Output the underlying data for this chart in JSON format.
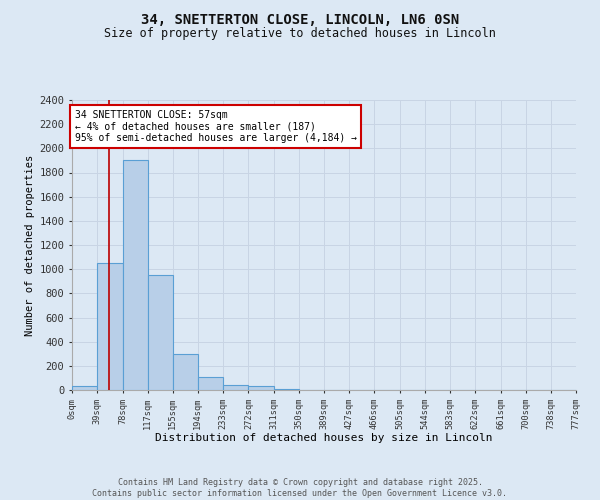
{
  "title_line1": "34, SNETTERTON CLOSE, LINCOLN, LN6 0SN",
  "title_line2": "Size of property relative to detached houses in Lincoln",
  "xlabel": "Distribution of detached houses by size in Lincoln",
  "ylabel": "Number of detached properties",
  "bin_edges": [
    0,
    39,
    78,
    117,
    155,
    194,
    233,
    272,
    311,
    350,
    389,
    427,
    466,
    505,
    544,
    583,
    622,
    661,
    700,
    738,
    777
  ],
  "bar_heights": [
    30,
    1050,
    1900,
    950,
    300,
    110,
    40,
    30,
    5,
    0,
    0,
    0,
    0,
    0,
    0,
    0,
    0,
    0,
    0,
    0
  ],
  "bar_facecolor": "#b8cfe8",
  "bar_edgecolor": "#5a9fd4",
  "grid_color": "#c8d4e4",
  "background_color": "#dce8f4",
  "red_line_x": 57,
  "annotation_text": "34 SNETTERTON CLOSE: 57sqm\n← 4% of detached houses are smaller (187)\n95% of semi-detached houses are larger (4,184) →",
  "annotation_box_edgecolor": "#cc0000",
  "annotation_box_facecolor": "#ffffff",
  "ylim": [
    0,
    2400
  ],
  "yticks": [
    0,
    200,
    400,
    600,
    800,
    1000,
    1200,
    1400,
    1600,
    1800,
    2000,
    2200,
    2400
  ],
  "tick_labels": [
    "0sqm",
    "39sqm",
    "78sqm",
    "117sqm",
    "155sqm",
    "194sqm",
    "233sqm",
    "272sqm",
    "311sqm",
    "350sqm",
    "389sqm",
    "427sqm",
    "466sqm",
    "505sqm",
    "544sqm",
    "583sqm",
    "622sqm",
    "661sqm",
    "700sqm",
    "738sqm",
    "777sqm"
  ],
  "footer_line1": "Contains HM Land Registry data © Crown copyright and database right 2025.",
  "footer_line2": "Contains public sector information licensed under the Open Government Licence v3.0."
}
